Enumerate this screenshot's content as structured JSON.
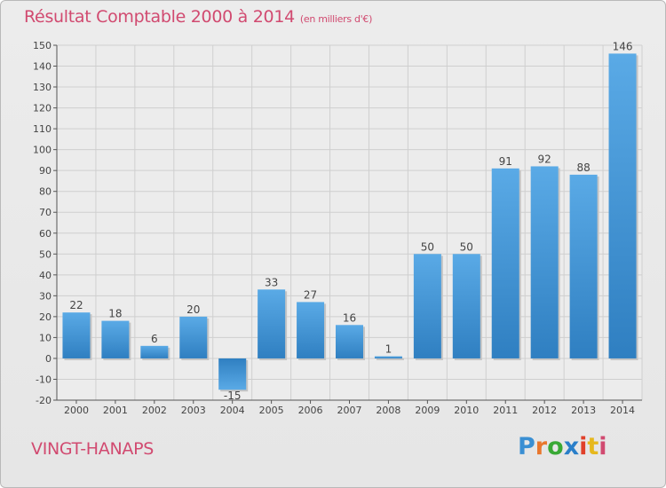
{
  "chart_data": {
    "type": "bar",
    "title": "Résultat Comptable 2000 à 2014",
    "subtitle": "(en milliers d'€)",
    "categories": [
      "2000",
      "2001",
      "2002",
      "2003",
      "2004",
      "2005",
      "2006",
      "2007",
      "2008",
      "2009",
      "2010",
      "2011",
      "2012",
      "2013",
      "2014"
    ],
    "values": [
      22,
      18,
      6,
      20,
      -15,
      33,
      27,
      16,
      1,
      50,
      50,
      91,
      92,
      88,
      146
    ],
    "ylim": [
      -20,
      150
    ],
    "yticks": [
      -20,
      -10,
      0,
      10,
      20,
      30,
      40,
      50,
      60,
      70,
      80,
      90,
      100,
      110,
      120,
      130,
      140,
      150
    ],
    "xlabel": "",
    "ylabel": "",
    "grid": true
  },
  "footer": {
    "place": "VINGT-HANAPS",
    "logo_text": "Proxiti",
    "logo_colors": [
      "#3a8fd3",
      "#e9772d",
      "#39a935",
      "#2a7fc9",
      "#e0402a",
      "#e6b81d",
      "#d14a70"
    ]
  }
}
